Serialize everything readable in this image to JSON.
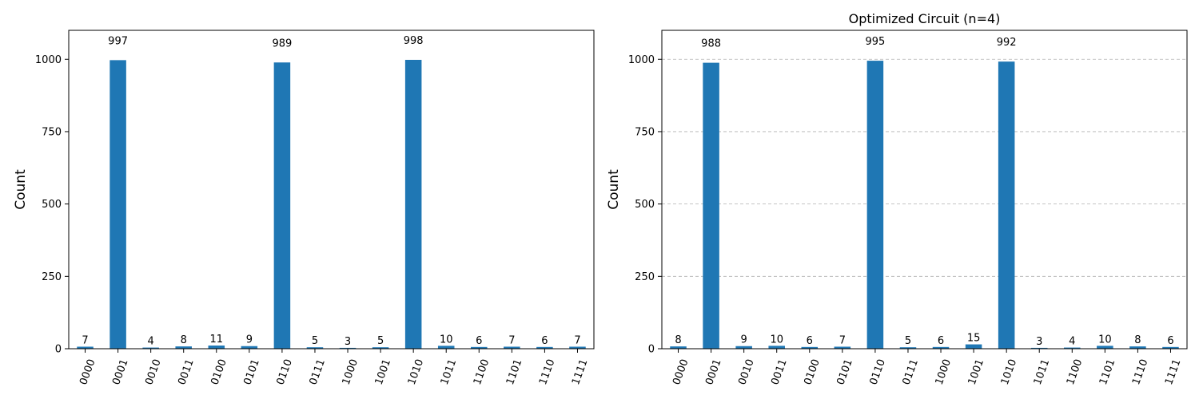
{
  "figure": {
    "background": "#ffffff",
    "bar_color": "#1f77b4",
    "grid_color": "#b0b0b0"
  },
  "chart_data": [
    {
      "type": "bar",
      "title": "",
      "xlabel": "",
      "ylabel": "Count",
      "ylim": [
        0,
        1100
      ],
      "yticks": [
        0,
        250,
        500,
        750,
        1000
      ],
      "grid": false,
      "categories": [
        "0000",
        "0001",
        "0010",
        "0011",
        "0100",
        "0101",
        "0110",
        "0111",
        "1000",
        "1001",
        "1010",
        "1011",
        "1100",
        "1101",
        "1110",
        "1111"
      ],
      "values": [
        7,
        997,
        4,
        8,
        11,
        9,
        989,
        5,
        3,
        5,
        998,
        10,
        6,
        7,
        6,
        7
      ]
    },
    {
      "type": "bar",
      "title": "Optimized Circuit (n=4)",
      "xlabel": "",
      "ylabel": "Count",
      "ylim": [
        0,
        1100
      ],
      "yticks": [
        0,
        250,
        500,
        750,
        1000
      ],
      "grid": true,
      "categories": [
        "0000",
        "0001",
        "0010",
        "0011",
        "0100",
        "0101",
        "0110",
        "0111",
        "1000",
        "1001",
        "1010",
        "1011",
        "1100",
        "1101",
        "1110",
        "1111"
      ],
      "values": [
        8,
        988,
        9,
        10,
        6,
        7,
        995,
        5,
        6,
        15,
        992,
        3,
        4,
        10,
        8,
        6
      ]
    }
  ]
}
